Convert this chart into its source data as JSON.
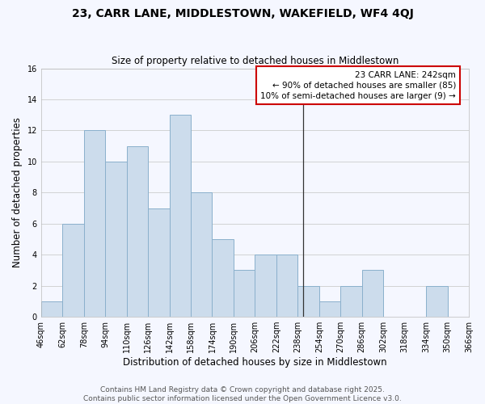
{
  "title": "23, CARR LANE, MIDDLESTOWN, WAKEFIELD, WF4 4QJ",
  "subtitle": "Size of property relative to detached houses in Middlestown",
  "xlabel": "Distribution of detached houses by size in Middlestown",
  "ylabel": "Number of detached properties",
  "bar_color": "#ccdcec",
  "bar_edge_color": "#8ab0cc",
  "background_color": "#f5f7ff",
  "grid_color": "#cccccc",
  "bins": [
    46,
    62,
    78,
    94,
    110,
    126,
    142,
    158,
    174,
    190,
    206,
    222,
    238,
    254,
    270,
    286,
    302,
    318,
    334,
    350,
    366
  ],
  "counts": [
    1,
    6,
    12,
    10,
    11,
    7,
    13,
    8,
    5,
    3,
    4,
    4,
    2,
    1,
    2,
    3,
    0,
    0,
    2,
    0,
    0
  ],
  "vline_x": 242,
  "vline_color": "#333333",
  "ylim": [
    0,
    16
  ],
  "yticks": [
    0,
    2,
    4,
    6,
    8,
    10,
    12,
    14,
    16
  ],
  "annotation_title": "23 CARR LANE: 242sqm",
  "annotation_line1": "← 90% of detached houses are smaller (85)",
  "annotation_line2": "10% of semi-detached houses are larger (9) →",
  "footer_line1": "Contains HM Land Registry data © Crown copyright and database right 2025.",
  "footer_line2": "Contains public sector information licensed under the Open Government Licence v3.0.",
  "title_fontsize": 10,
  "subtitle_fontsize": 8.5,
  "axis_label_fontsize": 8.5,
  "tick_fontsize": 7,
  "annotation_fontsize": 7.5,
  "footer_fontsize": 6.5,
  "ann_box_edgecolor": "#cc0000"
}
